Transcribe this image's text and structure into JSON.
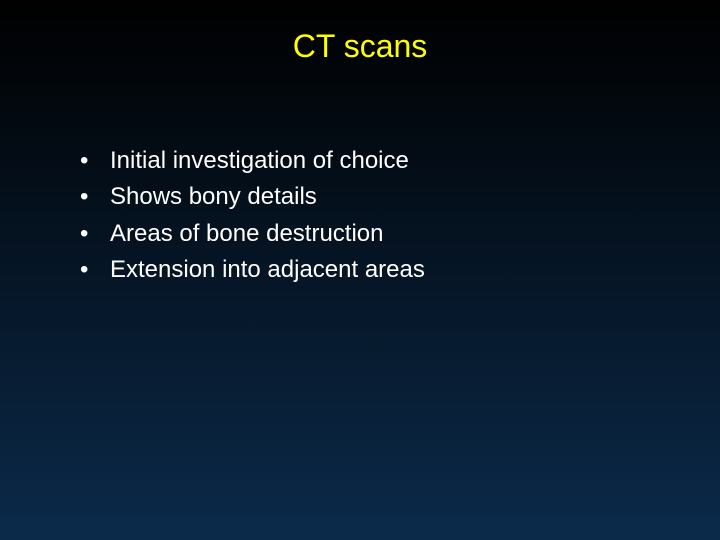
{
  "slide": {
    "title": "CT scans",
    "title_color": "#ffff00",
    "title_fontsize": 32,
    "bullet_color": "#ffffff",
    "bullet_fontsize": 24,
    "bullet_lineheight": 1.35,
    "background_gradient_top": "#000000",
    "background_gradient_bottom": "#0b2a4a",
    "bullets": [
      "Initial investigation of choice",
      "Shows bony details",
      "Areas of bone destruction",
      "Extension into adjacent areas"
    ]
  }
}
